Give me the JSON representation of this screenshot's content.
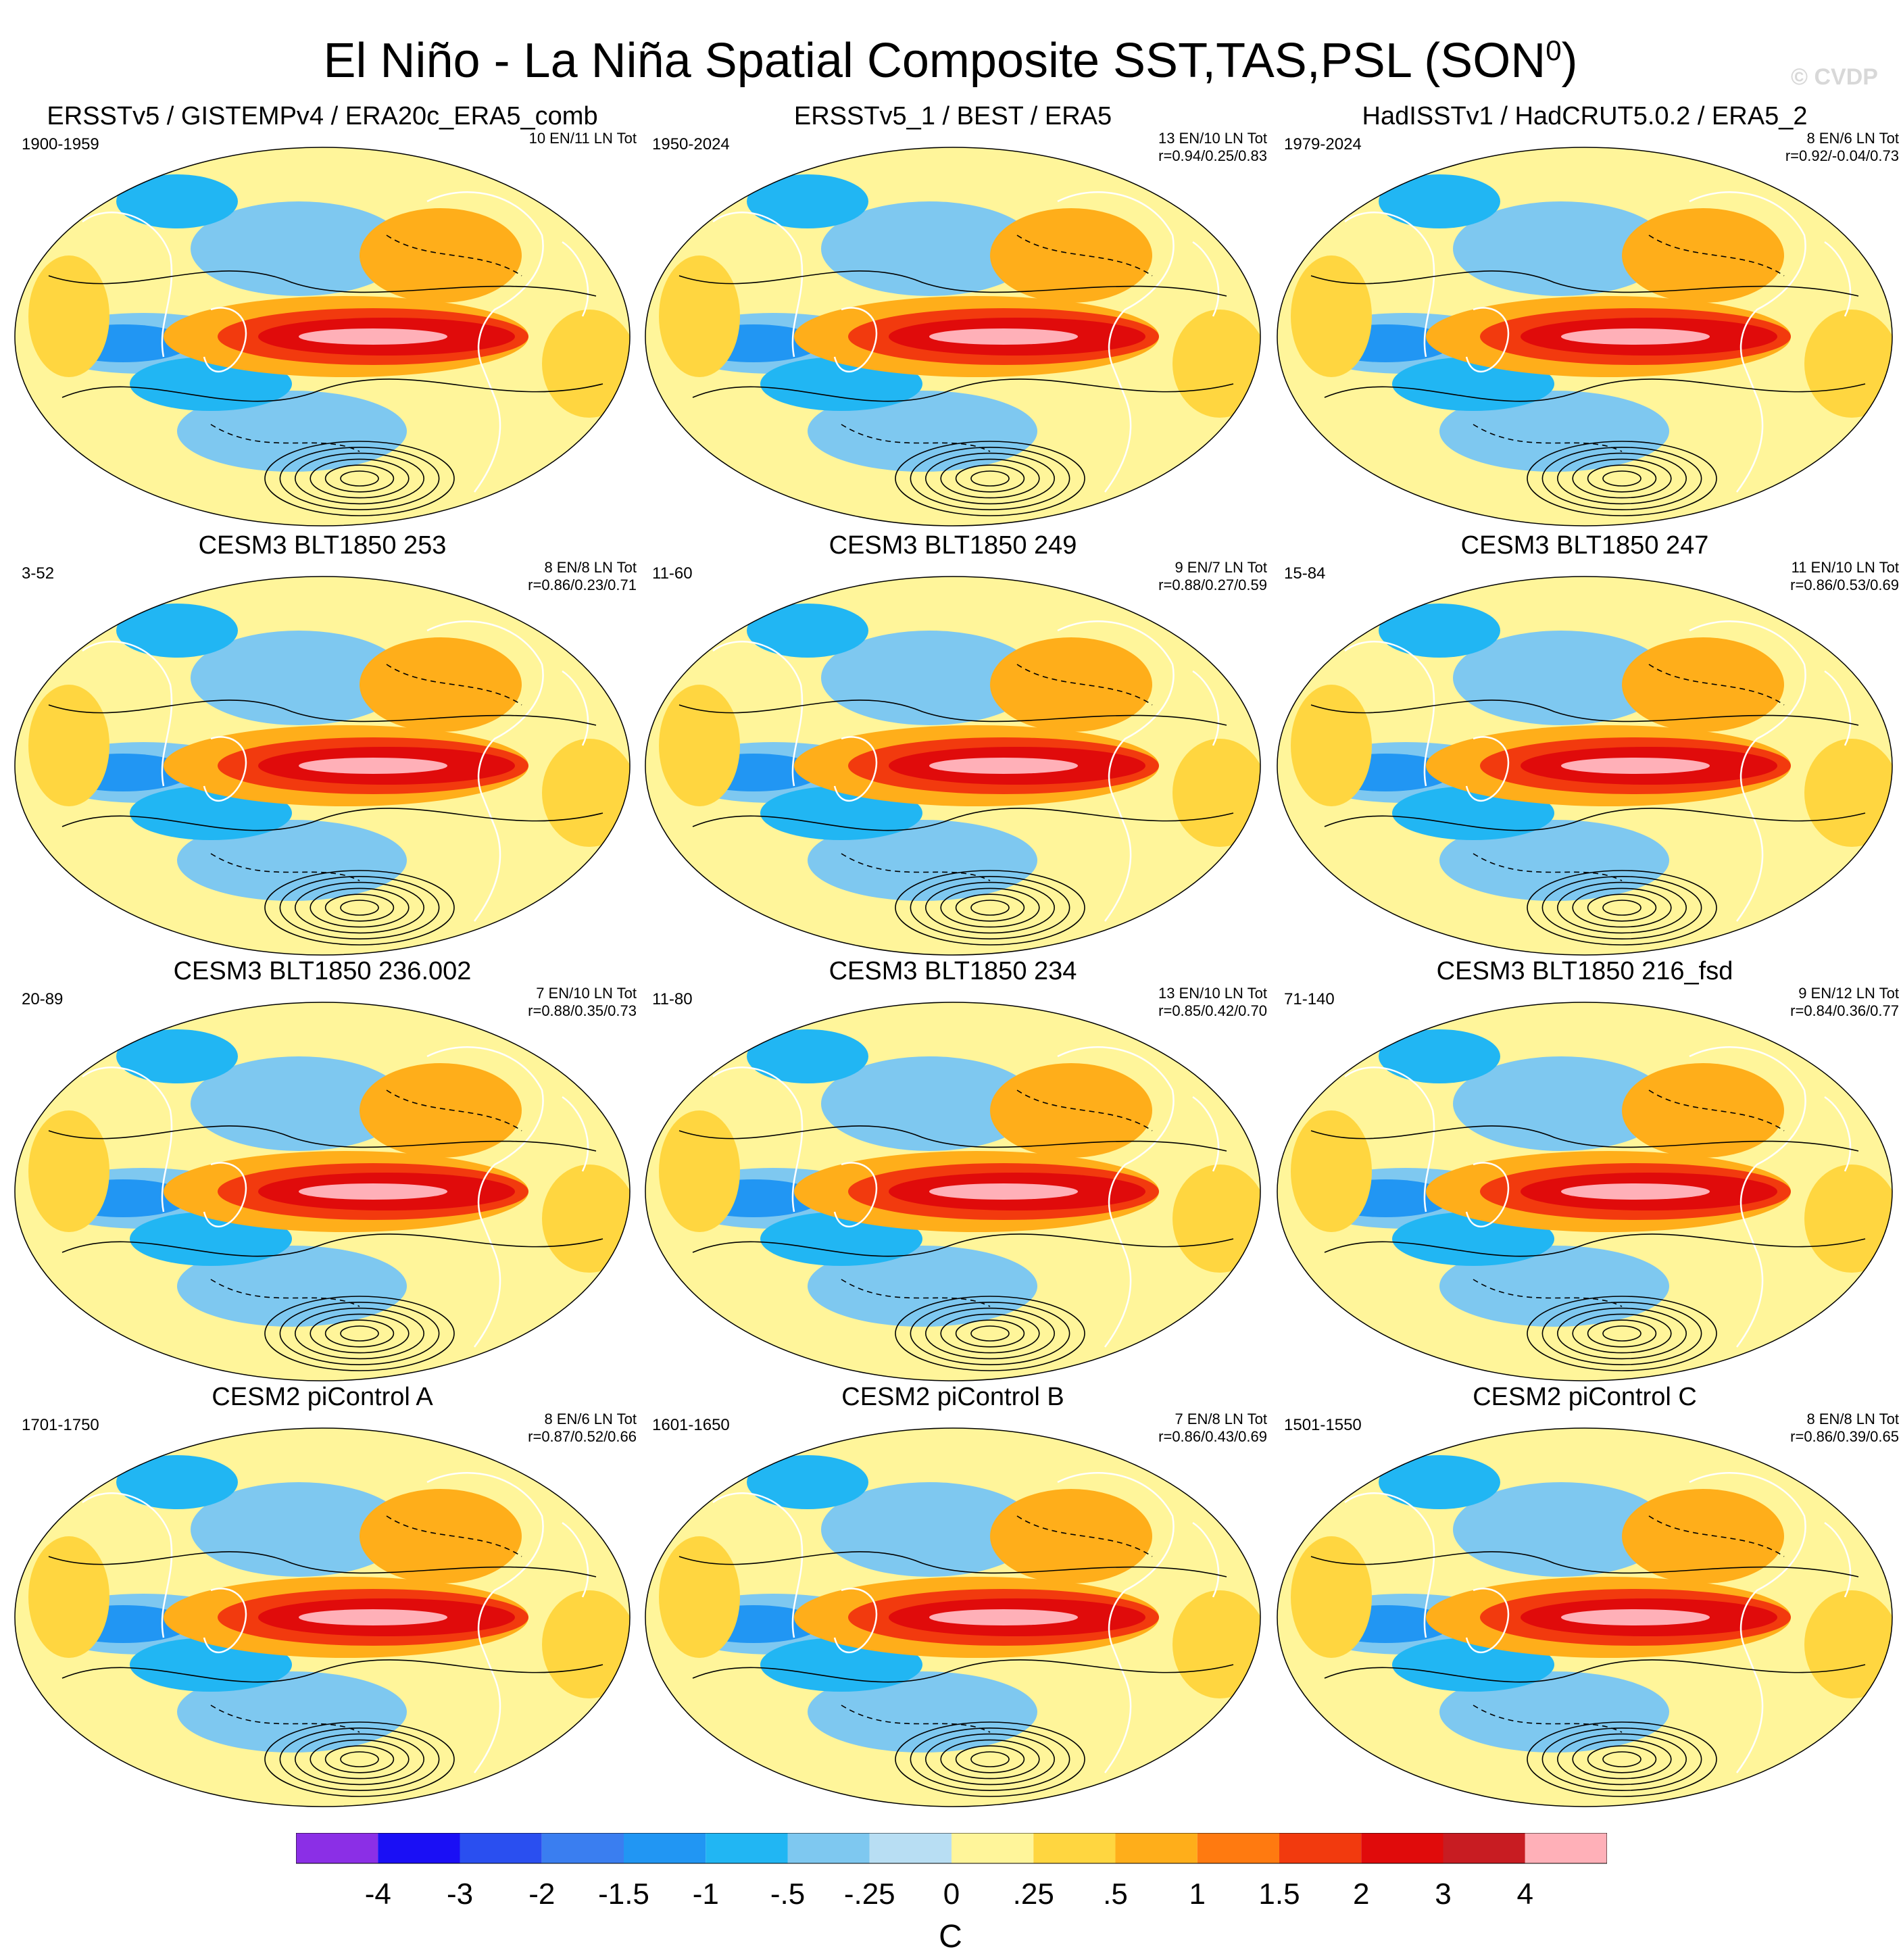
{
  "header": {
    "title": "El Niño - La Niña Spatial Composite SST,TAS,PSL (SON",
    "title_superscript": "0",
    "title_suffix": ")",
    "watermark": "© CVDP"
  },
  "panels": [
    {
      "title": "ERSSTv5 / GISTEMPv4 / ERA20c_ERA5_comb",
      "years": "1900-1959",
      "counts": "10 EN/11 LN Tot",
      "stats": ""
    },
    {
      "title": "ERSSTv5_1 / BEST / ERA5",
      "years": "1950-2024",
      "counts": "13 EN/10 LN Tot",
      "stats": "r=0.94/0.25/0.83"
    },
    {
      "title": "HadISSTv1 / HadCRUT5.0.2 / ERA5_2",
      "years": "1979-2024",
      "counts": "8 EN/6 LN Tot",
      "stats": "r=0.92/-0.04/0.73"
    },
    {
      "title": "CESM3 BLT1850 253",
      "years": "3-52",
      "counts": "8 EN/8 LN Tot",
      "stats": "r=0.86/0.23/0.71"
    },
    {
      "title": "CESM3 BLT1850 249",
      "years": "11-60",
      "counts": "9 EN/7 LN Tot",
      "stats": "r=0.88/0.27/0.59"
    },
    {
      "title": "CESM3 BLT1850 247",
      "years": "15-84",
      "counts": "11 EN/10 LN Tot",
      "stats": "r=0.86/0.53/0.69"
    },
    {
      "title": "CESM3 BLT1850 236.002",
      "years": "20-89",
      "counts": "7 EN/10 LN Tot",
      "stats": "r=0.88/0.35/0.73"
    },
    {
      "title": "CESM3 BLT1850 234",
      "years": "11-80",
      "counts": "13 EN/10 LN Tot",
      "stats": "r=0.85/0.42/0.70"
    },
    {
      "title": "CESM3 BLT1850 216_fsd",
      "years": "71-140",
      "counts": "9 EN/12 LN Tot",
      "stats": "r=0.84/0.36/0.77"
    },
    {
      "title": "CESM2 piControl A",
      "years": "1701-1750",
      "counts": "8 EN/6 LN Tot",
      "stats": "r=0.87/0.52/0.66"
    },
    {
      "title": "CESM2 piControl B",
      "years": "1601-1650",
      "counts": "7 EN/8 LN Tot",
      "stats": "r=0.86/0.43/0.69"
    },
    {
      "title": "CESM2 piControl C",
      "years": "1501-1550",
      "counts": "8 EN/8 LN Tot",
      "stats": "r=0.86/0.39/0.65"
    }
  ],
  "colorbar": {
    "unit": "C",
    "labels": [
      "-4",
      "-3",
      "-2",
      "-1.5",
      "-1",
      "-.5",
      "-.25",
      "0",
      ".25",
      ".5",
      "1",
      "1.5",
      "2",
      "3",
      "4"
    ],
    "colors": [
      "#8b2fe6",
      "#1a0ff5",
      "#2a4ff0",
      "#3a7ef0",
      "#2196f3",
      "#21b6f3",
      "#7ec8f0",
      "#b8def3",
      "#fff59a",
      "#ffd640",
      "#ffae1a",
      "#ff7a10",
      "#f23a0e",
      "#e00b0b",
      "#c81c22",
      "#ffb0b8"
    ]
  }
}
